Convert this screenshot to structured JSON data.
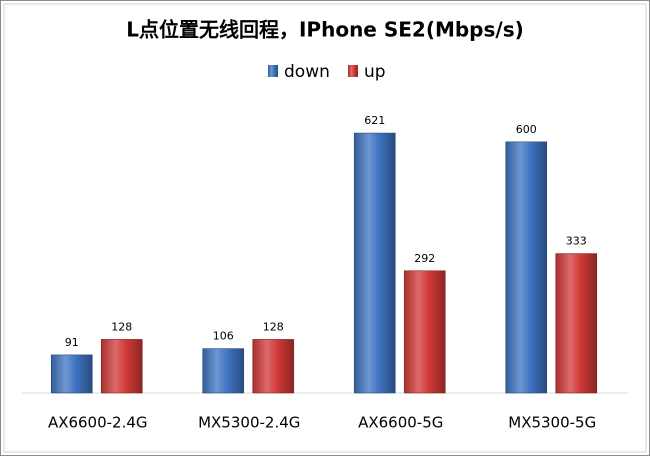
{
  "chart_data": {
    "type": "bar",
    "title": "L点位置无线回程，IPhone SE2(Mbps/s)",
    "categories": [
      "AX6600-2.4G",
      "MX5300-2.4G",
      "AX6600-5G",
      "MX5300-5G"
    ],
    "series": [
      {
        "name": "down",
        "color": "#3f74c2",
        "values": [
          91,
          106,
          621,
          600
        ]
      },
      {
        "name": "up",
        "color": "#d23a38",
        "values": [
          128,
          128,
          292,
          333
        ]
      }
    ],
    "ylim": [
      0,
      700
    ],
    "legend": "top"
  }
}
